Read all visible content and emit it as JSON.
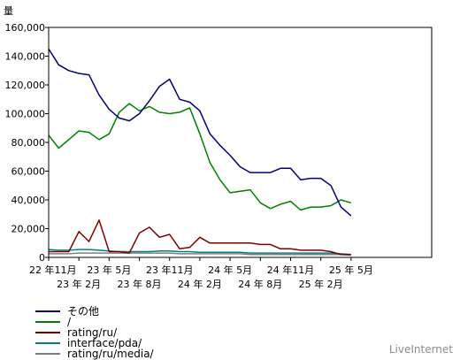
{
  "chart_data": {
    "type": "line",
    "ylabel": "量",
    "ylim": [
      0,
      160000
    ],
    "yticks": [
      "0",
      "20,000",
      "40,000",
      "60,000",
      "80,000",
      "100,000",
      "120,000",
      "140,000",
      "160,000"
    ],
    "x_tick_labels": [
      "22 年11月",
      "23 年 2月",
      "23 年 5月",
      "23 年 8月",
      "23 年11月",
      "24 年 2月",
      "24 年 5月",
      "24 年 8月",
      "24 年11月",
      "25 年 2月",
      "25 年 5月"
    ],
    "grid": false,
    "legend_position": "bottom-left",
    "n_points": 39,
    "series": [
      {
        "name": "その他",
        "color": "#000080",
        "values": [
          145000,
          134000,
          130000,
          128000,
          127000,
          113000,
          103000,
          97000,
          95000,
          100000,
          109000,
          119000,
          124000,
          110000,
          108000,
          102000,
          86000,
          78000,
          71000,
          63000,
          59000,
          59000,
          59000,
          62000,
          62000,
          54000,
          55000,
          55000,
          50000,
          35000,
          29000,
          null,
          null,
          null,
          null,
          null,
          null,
          null,
          null
        ]
      },
      {
        "name": "/",
        "color": "#008000",
        "values": [
          85000,
          76000,
          82000,
          88000,
          87000,
          82000,
          86000,
          101000,
          107000,
          102000,
          105000,
          101000,
          100000,
          101000,
          104000,
          86000,
          66000,
          54000,
          45000,
          46000,
          47000,
          38000,
          34000,
          37000,
          39000,
          33000,
          35000,
          35000,
          36000,
          40000,
          38000,
          null,
          null,
          null,
          null,
          null,
          null,
          null,
          null
        ]
      },
      {
        "name": "rating/ru/",
        "color": "#800000",
        "values": [
          4000,
          4000,
          4000,
          18000,
          11000,
          26000,
          4000,
          4000,
          3000,
          17000,
          21000,
          14000,
          16000,
          6000,
          7000,
          14000,
          10000,
          10000,
          10000,
          10000,
          10000,
          9000,
          9000,
          6000,
          6000,
          5000,
          5000,
          5000,
          4000,
          2000,
          2000,
          null,
          null,
          null,
          null,
          null,
          null,
          null,
          null
        ]
      },
      {
        "name": "interface/pda/",
        "color": "#008080",
        "values": [
          5500,
          5000,
          5000,
          5500,
          5500,
          5000,
          4500,
          4000,
          4000,
          4000,
          4000,
          4500,
          4500,
          4000,
          4000,
          3500,
          3500,
          3500,
          3500,
          3500,
          3000,
          3000,
          3000,
          3000,
          3000,
          3000,
          3000,
          3000,
          3000,
          2500,
          2000,
          null,
          null,
          null,
          null,
          null,
          null,
          null,
          null
        ]
      },
      {
        "name": "rating/ru/media/",
        "color": "#808080",
        "values": [
          2500,
          2500,
          2500,
          3000,
          3000,
          3000,
          3000,
          3000,
          3000,
          3000,
          3000,
          3000,
          3000,
          2500,
          2500,
          2500,
          2500,
          2500,
          2500,
          2500,
          2000,
          2000,
          2000,
          2000,
          2000,
          2000,
          2000,
          2000,
          2000,
          2000,
          1500,
          null,
          null,
          null,
          null,
          null,
          null,
          null,
          null
        ]
      }
    ]
  },
  "legend": {
    "items": [
      {
        "label": "その他",
        "color": "#000080"
      },
      {
        "label": "/",
        "color": "#008000"
      },
      {
        "label": "rating/ru/",
        "color": "#800000"
      },
      {
        "label": "interface/pda/",
        "color": "#008080"
      },
      {
        "label": "rating/ru/media/",
        "color": "#808080"
      }
    ]
  },
  "watermark": "LiveInternet"
}
